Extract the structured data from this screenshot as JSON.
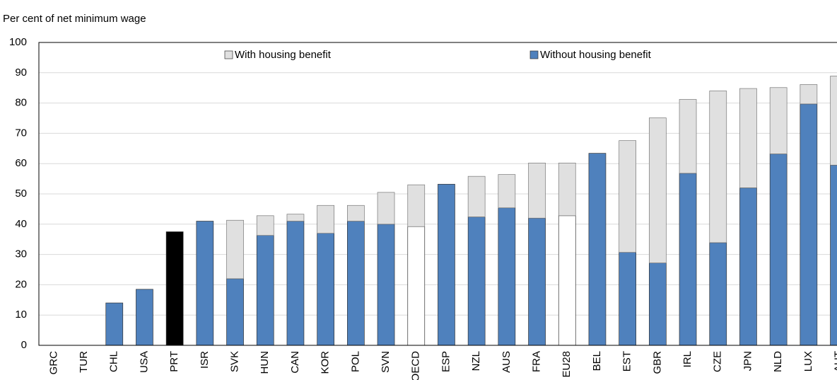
{
  "chart_data": {
    "type": "stacked-bar",
    "y_label": "Per cent of net minimum wage",
    "categories": [
      "GRC",
      "TUR",
      "CHL",
      "USA",
      "PRT",
      "ISR",
      "SVK",
      "HUN",
      "CAN",
      "KOR",
      "POL",
      "SVN",
      "OECD",
      "ESP",
      "NZL",
      "AUS",
      "FRA",
      "EU28",
      "BEL",
      "EST",
      "GBR",
      "IRL",
      "CZE",
      "JPN",
      "NLD",
      "LUX",
      "AUT"
    ],
    "series": [
      {
        "name": "Without housing benefit",
        "color": "#4f81bd",
        "point_colors": {
          "PRT": "#000000",
          "OECD": "#ffffff",
          "EU28": "#ffffff"
        },
        "values": [
          null,
          null,
          14,
          18.5,
          37.5,
          41,
          22,
          36.3,
          41,
          37,
          41,
          40,
          39.2,
          53.2,
          42.4,
          45.4,
          42,
          42.8,
          63.4,
          30.7,
          27.2,
          56.8,
          33.9,
          52,
          63.2,
          79.7,
          59.5
        ]
      },
      {
        "name": "With housing benefit",
        "color": "#e0e0e0",
        "values": [
          null,
          null,
          null,
          null,
          null,
          null,
          19.3,
          6.5,
          2.3,
          9.2,
          5.2,
          10.5,
          13.8,
          null,
          13.4,
          11,
          18.2,
          17.4,
          null,
          36.9,
          47.9,
          24.4,
          50.1,
          32.8,
          21.9,
          6.4,
          29.4
        ]
      }
    ],
    "ylim": [
      0,
      100
    ],
    "yticks": [
      0,
      10,
      20,
      30,
      40,
      50,
      60,
      70,
      80,
      90,
      100
    ],
    "grid": true
  }
}
